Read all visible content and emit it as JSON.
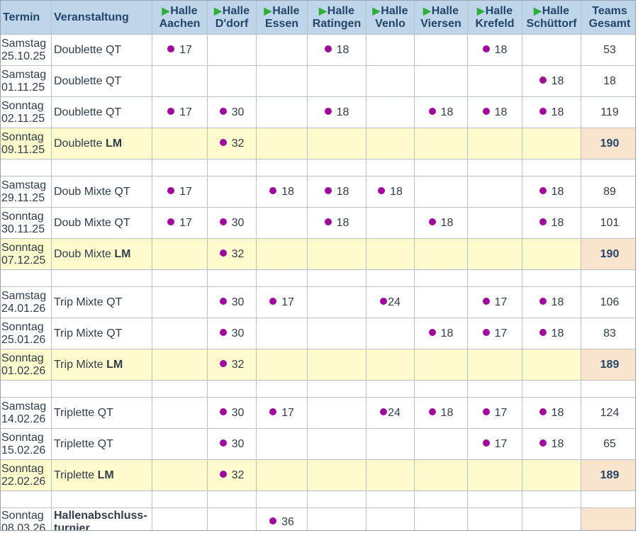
{
  "header": {
    "termin": "Termin",
    "veranstaltung": "Veranstaltung",
    "halle_prefix": "Halle",
    "halls": [
      "Aachen",
      "D'dorf",
      "Essen",
      "Ratingen",
      "Venlo",
      "Viersen",
      "Krefeld",
      "Schüttorf"
    ],
    "teams_line1": "Teams",
    "teams_line2": "Gesamt"
  },
  "colors": {
    "dot": "#a0079d",
    "arrow": "#2fae37",
    "header_bg": "#bed5ea",
    "lm_bg": "#fefbcc",
    "lm_total_bg": "#fae4ce"
  },
  "rows": [
    {
      "type": "row",
      "day": "Samstag",
      "date": "25.10.25",
      "event": "Doublette QT",
      "event_bold": "",
      "counts": [
        "17",
        "",
        "",
        "18",
        "",
        "",
        "18",
        ""
      ],
      "total": "53"
    },
    {
      "type": "row",
      "day": "Samstag",
      "date": "01.11.25",
      "event": "Doublette QT",
      "event_bold": "",
      "counts": [
        "",
        "",
        "",
        "",
        "",
        "",
        "",
        "18"
      ],
      "total": "18"
    },
    {
      "type": "row",
      "day": "Sonntag",
      "date": "02.11.25",
      "event": "Doublette QT",
      "event_bold": "",
      "counts": [
        "17",
        "30",
        "",
        "18",
        "",
        "18",
        "18",
        "18"
      ],
      "total": "119"
    },
    {
      "type": "lm",
      "day": "Sonntag",
      "date": "09.11.25",
      "event": "Doublette ",
      "event_bold": "LM",
      "counts": [
        "",
        "32",
        "",
        "",
        "",
        "",
        "",
        ""
      ],
      "total": "190"
    },
    {
      "type": "spacer"
    },
    {
      "type": "row",
      "day": "Samstag",
      "date": "29.11.25",
      "event": "Doub Mixte QT",
      "event_bold": "",
      "counts": [
        "17",
        "",
        "18",
        "18",
        "18",
        "",
        "",
        "18"
      ],
      "total": "89"
    },
    {
      "type": "row",
      "day": "Sonntag",
      "date": "30.11.25",
      "event": "Doub Mixte QT",
      "event_bold": "",
      "counts": [
        "17",
        "30",
        "",
        "18",
        "",
        "18",
        "",
        "18"
      ],
      "total": "101"
    },
    {
      "type": "lm",
      "day": "Sonntag",
      "date": "07.12.25",
      "event": "Doub Mixte ",
      "event_bold": "LM",
      "counts": [
        "",
        "32",
        "",
        "",
        "",
        "",
        "",
        ""
      ],
      "total": "190"
    },
    {
      "type": "spacer"
    },
    {
      "type": "row",
      "day": "Samstag",
      "date": "24.01.26",
      "event": "Trip Mixte QT",
      "event_bold": "",
      "counts": [
        "",
        "30",
        "17",
        "",
        "24",
        "",
        "17",
        "18"
      ],
      "total": "106"
    },
    {
      "type": "row",
      "day": "Sonntag",
      "date": "25.01.26",
      "event": "Trip Mixte QT",
      "event_bold": "",
      "counts": [
        "",
        "30",
        "",
        "",
        "",
        "18",
        "17",
        "18"
      ],
      "total": "83"
    },
    {
      "type": "lm",
      "day": "Sonntag",
      "date": "01.02.26",
      "event": "Trip Mixte ",
      "event_bold": "LM",
      "counts": [
        "",
        "32",
        "",
        "",
        "",
        "",
        "",
        ""
      ],
      "total": "189"
    },
    {
      "type": "spacer"
    },
    {
      "type": "row",
      "day": "Samstag",
      "date": "14.02.26",
      "event": "Triplette QT",
      "event_bold": "",
      "counts": [
        "",
        "30",
        "17",
        "",
        "24",
        "18",
        "17",
        "18"
      ],
      "total": "124"
    },
    {
      "type": "row",
      "day": "Sonntag",
      "date": "15.02.26",
      "event": "Triplette QT",
      "event_bold": "",
      "counts": [
        "",
        "30",
        "",
        "",
        "",
        "",
        "17",
        "18"
      ],
      "total": "65"
    },
    {
      "type": "lm",
      "day": "Sonntag",
      "date": "22.02.26",
      "event": "Triplette ",
      "event_bold": "LM",
      "counts": [
        "",
        "32",
        "",
        "",
        "",
        "",
        "",
        ""
      ],
      "total": "189"
    },
    {
      "type": "spacer"
    },
    {
      "type": "final",
      "day": "Sonntag",
      "date": "08.03.26",
      "event": "Hallenabschluss-turnier",
      "event_bold": "",
      "counts": [
        "",
        "",
        "36",
        "",
        "",
        "",
        "",
        ""
      ],
      "total": ""
    }
  ]
}
